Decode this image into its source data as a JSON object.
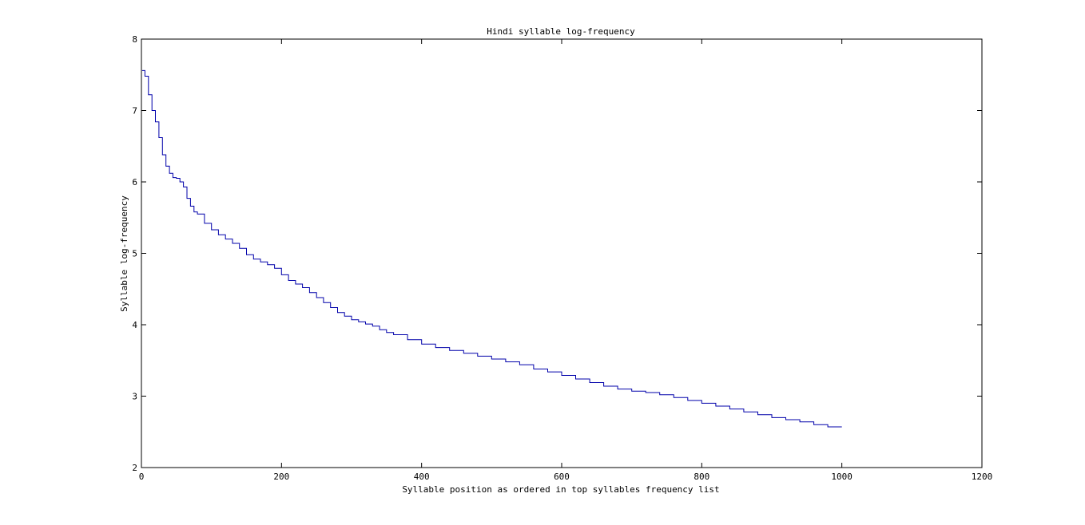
{
  "chart_data": {
    "type": "line",
    "title": "Hindi syllable log-frequency",
    "xlabel": "Syllable position as ordered in top syllables frequency list",
    "ylabel": "Syllable log-frequency",
    "xlim": [
      0,
      1200
    ],
    "ylim": [
      2,
      8
    ],
    "xticks": [
      0,
      200,
      400,
      600,
      800,
      1000,
      1200
    ],
    "yticks": [
      2,
      3,
      4,
      5,
      6,
      7,
      8
    ],
    "grid": false,
    "legend": "none",
    "line_color": "#0000aa",
    "series": [
      {
        "x": [
          1,
          5,
          10,
          15,
          20,
          25,
          30,
          35,
          40,
          45,
          50,
          55,
          60,
          65,
          70,
          75,
          80,
          90,
          100,
          110,
          120,
          130,
          140,
          150,
          160,
          170,
          180,
          190,
          200,
          210,
          220,
          230,
          240,
          250,
          260,
          270,
          280,
          290,
          300,
          310,
          320,
          330,
          340,
          350,
          360,
          380,
          400,
          420,
          440,
          460,
          480,
          500,
          520,
          540,
          560,
          580,
          600,
          620,
          640,
          660,
          680,
          700,
          720,
          740,
          760,
          780,
          800,
          820,
          840,
          860,
          880,
          900,
          920,
          940,
          960,
          980,
          1000
        ],
        "y": [
          7.56,
          7.48,
          7.22,
          7.0,
          6.84,
          6.62,
          6.38,
          6.22,
          6.12,
          6.06,
          6.05,
          6.0,
          5.93,
          5.77,
          5.66,
          5.58,
          5.55,
          5.42,
          5.33,
          5.26,
          5.2,
          5.14,
          5.07,
          4.98,
          4.92,
          4.88,
          4.84,
          4.79,
          4.7,
          4.62,
          4.57,
          4.52,
          4.45,
          4.38,
          4.31,
          4.24,
          4.17,
          4.12,
          4.07,
          4.04,
          4.01,
          3.98,
          3.93,
          3.89,
          3.86,
          3.79,
          3.73,
          3.68,
          3.64,
          3.6,
          3.56,
          3.52,
          3.48,
          3.44,
          3.38,
          3.34,
          3.29,
          3.24,
          3.19,
          3.14,
          3.1,
          3.07,
          3.05,
          3.02,
          2.98,
          2.94,
          2.9,
          2.86,
          2.82,
          2.78,
          2.74,
          2.7,
          2.67,
          2.64,
          2.6,
          2.57,
          2.57
        ]
      }
    ]
  }
}
